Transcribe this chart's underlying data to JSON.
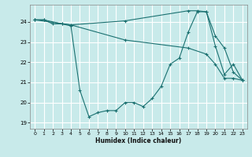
{
  "xlabel": "Humidex (Indice chaleur)",
  "bg_color": "#c8eaea",
  "grid_color": "#ffffff",
  "line_color": "#1a7070",
  "xlim": [
    -0.5,
    23.5
  ],
  "ylim": [
    18.7,
    24.85
  ],
  "yticks": [
    19,
    20,
    21,
    22,
    23,
    24
  ],
  "xticks": [
    0,
    1,
    2,
    3,
    4,
    5,
    6,
    7,
    8,
    9,
    10,
    11,
    12,
    13,
    14,
    15,
    16,
    17,
    18,
    19,
    20,
    21,
    22,
    23
  ],
  "series": [
    {
      "x": [
        0,
        1,
        2,
        3,
        4,
        5,
        6,
        7,
        8,
        9,
        10,
        11,
        12,
        13,
        14,
        15,
        16,
        17,
        18,
        19,
        20,
        21,
        22,
        23
      ],
      "y": [
        24.1,
        24.1,
        23.9,
        23.9,
        23.8,
        20.6,
        19.3,
        19.5,
        19.6,
        19.6,
        20.0,
        20.0,
        19.8,
        20.2,
        20.8,
        21.9,
        22.2,
        23.5,
        24.5,
        24.5,
        22.8,
        21.4,
        21.9,
        21.1
      ]
    },
    {
      "x": [
        0,
        1,
        3,
        4,
        10,
        17,
        18,
        19,
        20,
        21,
        22,
        23
      ],
      "y": [
        24.1,
        24.1,
        23.9,
        23.85,
        24.05,
        24.55,
        24.55,
        24.5,
        23.3,
        22.7,
        21.5,
        21.1
      ]
    },
    {
      "x": [
        0,
        4,
        10,
        17,
        19,
        20,
        21,
        22,
        23
      ],
      "y": [
        24.1,
        23.85,
        23.1,
        22.7,
        22.4,
        21.9,
        21.2,
        21.2,
        21.1
      ]
    }
  ]
}
